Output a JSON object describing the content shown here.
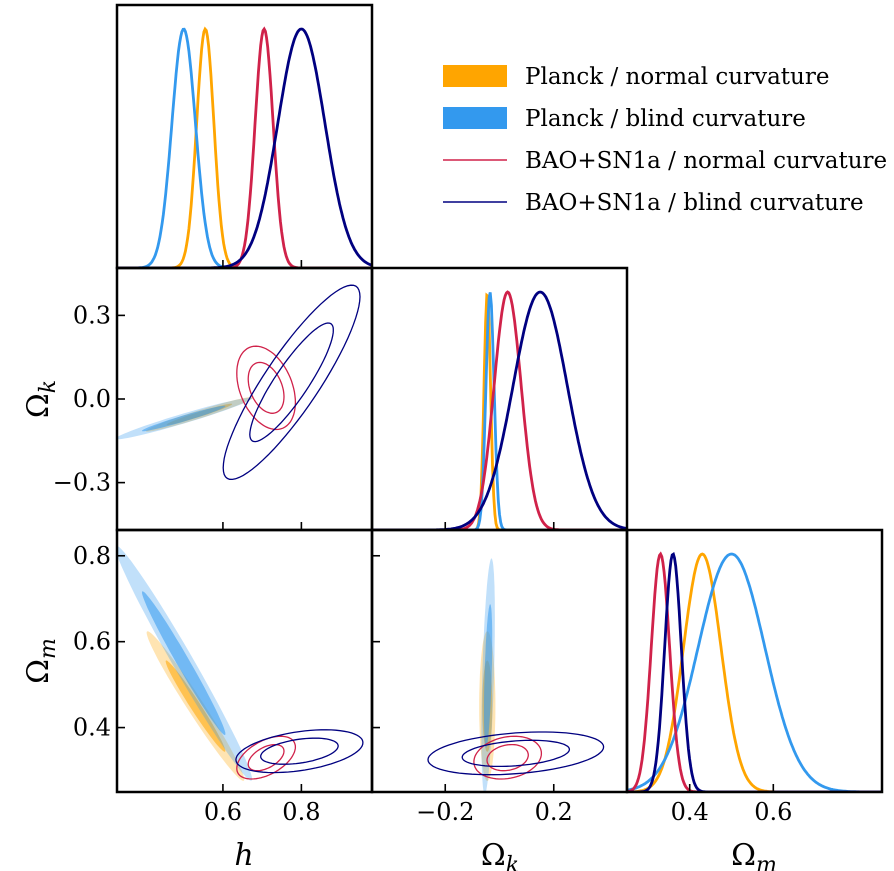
{
  "chart_data": {
    "type": "corner-plot",
    "parameters": [
      "h",
      "Ω_k",
      "Ω_m"
    ],
    "axis_labels": {
      "h": {
        "symbol": "h"
      },
      "omega_k": {
        "symbol": "Ω",
        "subscript": "k"
      },
      "omega_m": {
        "symbol": "Ω",
        "subscript": "m"
      }
    },
    "ranges": {
      "h": [
        0.33,
        0.98
      ],
      "omega_k": [
        -0.47,
        0.47
      ],
      "omega_m": [
        0.25,
        0.86
      ]
    },
    "ticks": {
      "h": [
        0.6,
        0.8
      ],
      "omega_k_x": [
        -0.2,
        0.2
      ],
      "omega_k_y": [
        -0.3,
        0.0,
        0.3
      ],
      "omega_m_x": [
        0.4,
        0.6
      ],
      "omega_m_y": [
        0.4,
        0.6,
        0.8
      ]
    },
    "tick_labels": {
      "h": [
        "0.6",
        "0.8"
      ],
      "omega_k_x": [
        "−0.2",
        "0.2"
      ],
      "omega_k_y": [
        "0.3",
        "0.0",
        "−0.3"
      ],
      "omega_m_x": [
        "0.4",
        "0.6"
      ],
      "omega_m_y": [
        "0.8",
        "0.6",
        "0.4"
      ]
    },
    "legend": {
      "placement": "top-right",
      "entries": [
        {
          "label": "Planck / normal curvature",
          "color": "#FFA500",
          "style": "filled"
        },
        {
          "label": "Planck / blind curvature",
          "color": "#3399EE",
          "style": "filled"
        },
        {
          "label": "BAO+SN1a / normal curvature",
          "color": "#D0224A",
          "style": "line"
        },
        {
          "label": "BAO+SN1a / blind curvature",
          "color": "#000080",
          "style": "line"
        }
      ]
    },
    "series": [
      {
        "name": "Planck / normal curvature",
        "color": "#FFA500",
        "style": "filled",
        "marginals": {
          "h": {
            "mean": 0.555,
            "sigma": 0.022
          },
          "omega_k": {
            "mean": -0.045,
            "sigma": 0.012
          },
          "omega_m": {
            "mean": 0.43,
            "sigma": 0.045
          }
        },
        "contours": {
          "h_omegak": {
            "center": [
              0.54,
              -0.055
            ],
            "sigma": [
              0.055,
              0.025
            ],
            "rho": 0.97
          },
          "h_omegam": {
            "center": [
              0.53,
              0.45
            ],
            "sigma": [
              0.05,
              0.07
            ],
            "rho": -0.98
          },
          "omegak_omegam": {
            "center": [
              -0.045,
              0.45
            ],
            "sigma": [
              0.012,
              0.07
            ],
            "rho": 0.0
          }
        }
      },
      {
        "name": "Planck / blind curvature",
        "color": "#3399EE",
        "style": "filled",
        "marginals": {
          "h": {
            "mean": 0.5,
            "sigma": 0.03
          },
          "omega_k": {
            "mean": -0.035,
            "sigma": 0.015
          },
          "omega_m": {
            "mean": 0.5,
            "sigma": 0.08
          }
        },
        "contours": {
          "h_omegak": {
            "center": [
              0.5,
              -0.07
            ],
            "sigma": [
              0.07,
              0.03
            ],
            "rho": 0.97
          },
          "h_omegam": {
            "center": [
              0.5,
              0.55
            ],
            "sigma": [
              0.07,
              0.11
            ],
            "rho": -0.985
          },
          "omegak_omegam": {
            "center": [
              -0.042,
              0.52
            ],
            "sigma": [
              0.01,
              0.11
            ],
            "rho": 0.5
          }
        }
      },
      {
        "name": "BAO+SN1a / normal curvature",
        "color": "#D0224A",
        "style": "line",
        "marginals": {
          "h": {
            "mean": 0.705,
            "sigma": 0.023
          },
          "omega_k": {
            "mean": 0.03,
            "sigma": 0.05
          },
          "omega_m": {
            "mean": 0.33,
            "sigma": 0.022
          }
        },
        "contours": {
          "h_omegak": {
            "center": [
              0.71,
              0.04
            ],
            "sigma": [
              0.03,
              0.06
            ],
            "rho": -0.35
          },
          "h_omegam": {
            "center": [
              0.71,
              0.33
            ],
            "sigma": [
              0.03,
              0.02
            ],
            "rho": 0.5
          },
          "omegak_omegam": {
            "center": [
              0.03,
              0.33
            ],
            "sigma": [
              0.05,
              0.02
            ],
            "rho": 0.2
          }
        }
      },
      {
        "name": "BAO+SN1a / blind curvature",
        "color": "#000080",
        "style": "line",
        "marginals": {
          "h": {
            "mean": 0.8,
            "sigma": 0.06
          },
          "omega_k": {
            "mean": 0.15,
            "sigma": 0.1
          },
          "omega_m": {
            "mean": 0.36,
            "sigma": 0.02
          }
        },
        "contours": {
          "h_omegak": {
            "center": [
              0.775,
              0.06
            ],
            "sigma": [
              0.07,
              0.14
            ],
            "rho": 0.88
          },
          "h_omegam": {
            "center": [
              0.795,
              0.345
            ],
            "sigma": [
              0.065,
              0.02
            ],
            "rho": 0.4
          },
          "omegak_omegam": {
            "center": [
              0.06,
              0.34
            ],
            "sigma": [
              0.13,
              0.02
            ],
            "rho": 0.3
          }
        }
      }
    ]
  }
}
